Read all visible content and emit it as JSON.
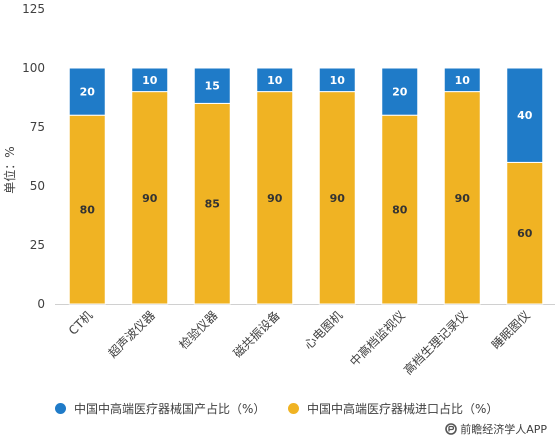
{
  "chart_data": {
    "type": "bar",
    "stacked": true,
    "categories": [
      "CT机",
      "超声波仪器",
      "检验仪器",
      "磁共振设备",
      "心电图机",
      "中高档监视仪",
      "高档生理记录仪",
      "睡眠图仪"
    ],
    "series": [
      {
        "name": "中国中高端医疗器械进口占比（%）",
        "values": [
          80,
          90,
          85,
          90,
          90,
          80,
          90,
          60
        ],
        "color": "#f0b323"
      },
      {
        "name": "中国中高端医疗器械国产占比（%）",
        "values": [
          20,
          10,
          15,
          10,
          10,
          20,
          10,
          40
        ],
        "color": "#1f7bc8"
      }
    ],
    "ylabel": "单位：%",
    "yticks": [
      0,
      25,
      50,
      75,
      100,
      125
    ],
    "ylim": [
      0,
      125
    ],
    "grid": false,
    "legend_position": "bottom"
  },
  "legend": {
    "domestic": "中国中高端医疗器械国产占比（%）",
    "imported": "中国中高端医疗器械进口占比（%）",
    "domestic_color": "#1f7bc8",
    "imported_color": "#f0b323"
  },
  "source": {
    "text": "前瞻经济学人APP",
    "logo_icon": "qianzhan-logo-icon"
  }
}
